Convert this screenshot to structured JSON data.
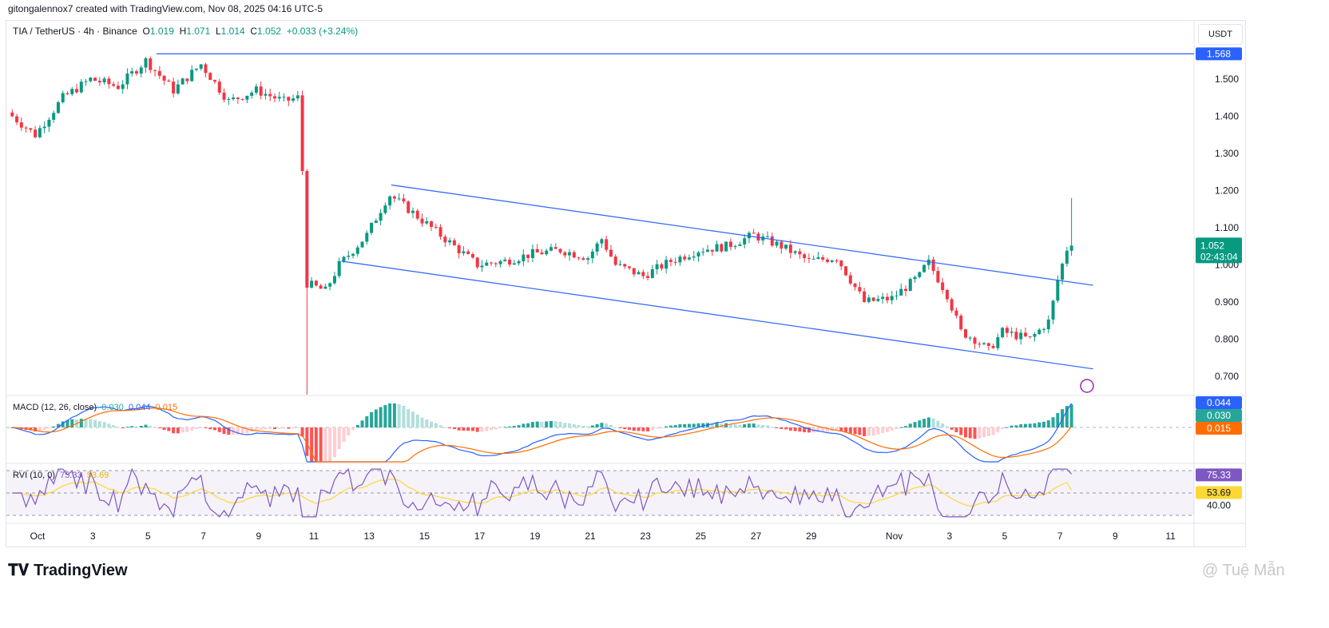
{
  "credit": "gitongalennox7 created with TradingView.com, Nov 08, 2025 04:16 UTC-5",
  "legend": {
    "symbol": "TIA / TetherUS · 4h · Binance",
    "o_label": "O",
    "o": "1.019",
    "h_label": "H",
    "h": "1.071",
    "l_label": "L",
    "l": "1.014",
    "c_label": "C",
    "c": "1.052",
    "change": "+0.033 (+3.24%)"
  },
  "currency": "USDT",
  "macd": {
    "label": "MACD (12, 26, close)",
    "hist": "0.030",
    "macd": "0.044",
    "signal": "0.015"
  },
  "rvi": {
    "label": "RVI (10, 0)",
    "value": "75.33",
    "ma": "53.69",
    "axis_label": "40.00"
  },
  "price_labels": {
    "level": "1.568",
    "last": "1.052",
    "countdown": "02:43:04"
  },
  "footer": {
    "brand": "TradingView",
    "watermark": "@ Tuệ Mẫn"
  },
  "colors": {
    "up": "#089981",
    "down": "#f23645",
    "line": "#2962ff",
    "signal": "#ff6d00",
    "rvi": "#7e57c2",
    "rvi_ma": "#fdd835"
  },
  "chart_data": {
    "type": "candlestick",
    "title": "TIA / TetherUS · 4h · Binance",
    "y_ticks": [
      "1.500",
      "1.400",
      "1.300",
      "1.200",
      "1.100",
      "1.000",
      "0.900",
      "0.800",
      "0.700"
    ],
    "ylim": [
      0.65,
      1.6
    ],
    "x_ticks": [
      {
        "label": "Oct",
        "day": 1
      },
      {
        "label": "3",
        "day": 3
      },
      {
        "label": "5",
        "day": 5
      },
      {
        "label": "7",
        "day": 7
      },
      {
        "label": "9",
        "day": 9
      },
      {
        "label": "11",
        "day": 11
      },
      {
        "label": "13",
        "day": 13
      },
      {
        "label": "15",
        "day": 15
      },
      {
        "label": "17",
        "day": 17
      },
      {
        "label": "19",
        "day": 19
      },
      {
        "label": "21",
        "day": 21
      },
      {
        "label": "23",
        "day": 23
      },
      {
        "label": "25",
        "day": 25
      },
      {
        "label": "27",
        "day": 27
      },
      {
        "label": "29",
        "day": 29
      },
      {
        "label": "Nov",
        "day": 32
      },
      {
        "label": "3",
        "day": 34
      },
      {
        "label": "5",
        "day": 36
      },
      {
        "label": "7",
        "day": 38
      },
      {
        "label": "9",
        "day": 40
      },
      {
        "label": "11",
        "day": 42
      }
    ],
    "close_path": [
      [
        0,
        1.41
      ],
      [
        1,
        1.35
      ],
      [
        2,
        1.45
      ],
      [
        3,
        1.5
      ],
      [
        4,
        1.48
      ],
      [
        5,
        1.55
      ],
      [
        6,
        1.47
      ],
      [
        7,
        1.54
      ],
      [
        8,
        1.44
      ],
      [
        9,
        1.47
      ],
      [
        10,
        1.44
      ],
      [
        10.5,
        1.45
      ],
      [
        10.67,
        1.25
      ],
      [
        10.83,
        0.95
      ],
      [
        11.5,
        0.93
      ],
      [
        12,
        1.0
      ],
      [
        13,
        1.08
      ],
      [
        13.8,
        1.19
      ],
      [
        14.5,
        1.15
      ],
      [
        15,
        1.12
      ],
      [
        16,
        1.06
      ],
      [
        17,
        1.0
      ],
      [
        18,
        1.01
      ],
      [
        19,
        1.03
      ],
      [
        20,
        1.04
      ],
      [
        21,
        1.02
      ],
      [
        21.5,
        1.07
      ],
      [
        22,
        1.0
      ],
      [
        23,
        0.97
      ],
      [
        24,
        1.01
      ],
      [
        25,
        1.04
      ],
      [
        26,
        1.05
      ],
      [
        27,
        1.08
      ],
      [
        28,
        1.05
      ],
      [
        29,
        1.01
      ],
      [
        30,
        1.02
      ],
      [
        31,
        0.9
      ],
      [
        32,
        0.91
      ],
      [
        33,
        0.97
      ],
      [
        33.3,
        1.01
      ],
      [
        34,
        0.92
      ],
      [
        34.5,
        0.82
      ],
      [
        35,
        0.8
      ],
      [
        35.5,
        0.77
      ],
      [
        36,
        0.82
      ],
      [
        37,
        0.8
      ],
      [
        37.7,
        0.85
      ],
      [
        38,
        0.96
      ],
      [
        38.4,
        1.06
      ],
      [
        38.6,
        1.0
      ],
      [
        39,
        1.052
      ]
    ],
    "annotations": [
      {
        "type": "horizontal",
        "price": 1.568,
        "from_day": 5.3
      },
      {
        "type": "trendline",
        "from": [
          13.8,
          1.215
        ],
        "to": [
          39.2,
          0.945
        ]
      },
      {
        "type": "trendline",
        "from": [
          12,
          1.01
        ],
        "to": [
          39.2,
          0.72
        ]
      }
    ]
  }
}
